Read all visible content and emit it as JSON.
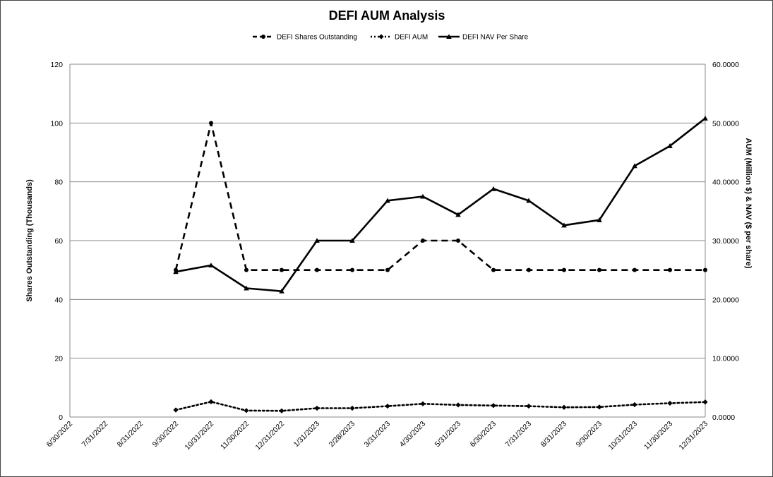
{
  "chart_data": {
    "type": "line",
    "title": "DEFI AUM Analysis",
    "categories": [
      "6/30/2022",
      "7/31/2022",
      "8/31/2022",
      "9/30/2022",
      "10/31/2022",
      "11/30/2022",
      "12/31/2022",
      "1/31/2023",
      "2/28/2023",
      "3/31/2023",
      "4/30/2023",
      "5/31/2023",
      "6/30/2023",
      "7/31/2023",
      "8/31/2023",
      "9/30/2023",
      "10/31/2023",
      "11/30/2023",
      "12/31/2023"
    ],
    "left_axis": {
      "label": "Shares Outstanding (Thousands)",
      "range": [
        0,
        120
      ],
      "ticks": [
        "0",
        "20",
        "40",
        "60",
        "80",
        "100",
        "120"
      ]
    },
    "right_axis": {
      "label": "AUM (Million $) & NAV ($ per share)",
      "range": [
        0,
        60
      ],
      "ticks": [
        "0.0000",
        "10.0000",
        "20.0000",
        "30.0000",
        "40.0000",
        "50.0000",
        "60.0000"
      ]
    },
    "grid": true,
    "legend_position": "top",
    "series": [
      {
        "name": "DEFI Shares Outstanding",
        "axis": "left",
        "style": "dashed",
        "marker": "circle",
        "values": [
          null,
          null,
          null,
          50,
          100,
          50,
          50,
          50,
          50,
          50,
          60,
          60,
          50,
          50,
          50,
          50,
          50,
          50,
          50
        ]
      },
      {
        "name": "DEFI AUM",
        "axis": "right",
        "style": "dotted",
        "marker": "diamond",
        "values": [
          null,
          null,
          null,
          1.2,
          2.6,
          1.1,
          1.05,
          1.5,
          1.5,
          1.85,
          2.25,
          2.05,
          1.95,
          1.85,
          1.65,
          1.7,
          2.1,
          2.35,
          2.55
        ]
      },
      {
        "name": "DEFI NAV Per Share",
        "axis": "right",
        "style": "solid",
        "marker": "triangle",
        "values": [
          null,
          null,
          null,
          24.7,
          25.8,
          21.9,
          21.4,
          30.0,
          30.0,
          36.8,
          37.5,
          34.4,
          38.8,
          36.8,
          32.6,
          33.5,
          42.7,
          46.1,
          50.8
        ]
      }
    ]
  }
}
